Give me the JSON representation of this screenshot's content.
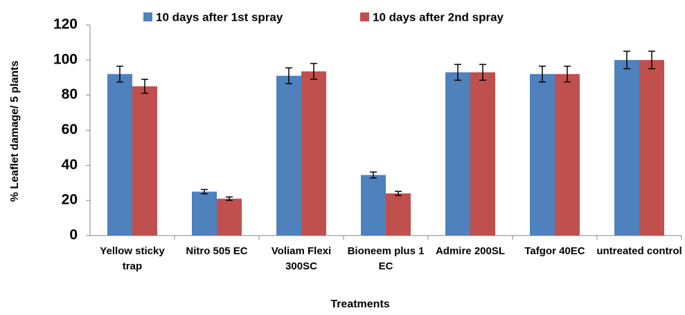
{
  "chart_data": {
    "type": "bar",
    "y_label": "% Leaflet damage/ 5 plants",
    "x_label": "Treatments",
    "categories": [
      "Yellow sticky trap",
      "Nitro 505 EC",
      "Voliam Flexi 300SC",
      "Bioneem plus 1 EC",
      "Admire 200SL",
      "Tafgor 40EC",
      "untreated control"
    ],
    "series": [
      {
        "name": "10 days after 1st spray",
        "color": "#4f81bd",
        "values": [
          92,
          25,
          91,
          34.5,
          93,
          92,
          100
        ],
        "errors": [
          4.5,
          1.2,
          4.5,
          1.7,
          4.5,
          4.5,
          5
        ]
      },
      {
        "name": "10 days after 2nd spray",
        "color": "#c0504d",
        "values": [
          85,
          21,
          93.5,
          24,
          93,
          92,
          100
        ],
        "errors": [
          4,
          1,
          4.5,
          1.2,
          4.5,
          4.5,
          5
        ]
      }
    ],
    "ylim": [
      0,
      120
    ],
    "yticks": [
      0,
      20,
      40,
      60,
      80,
      100,
      120
    ],
    "grid": false,
    "legend": "top"
  }
}
